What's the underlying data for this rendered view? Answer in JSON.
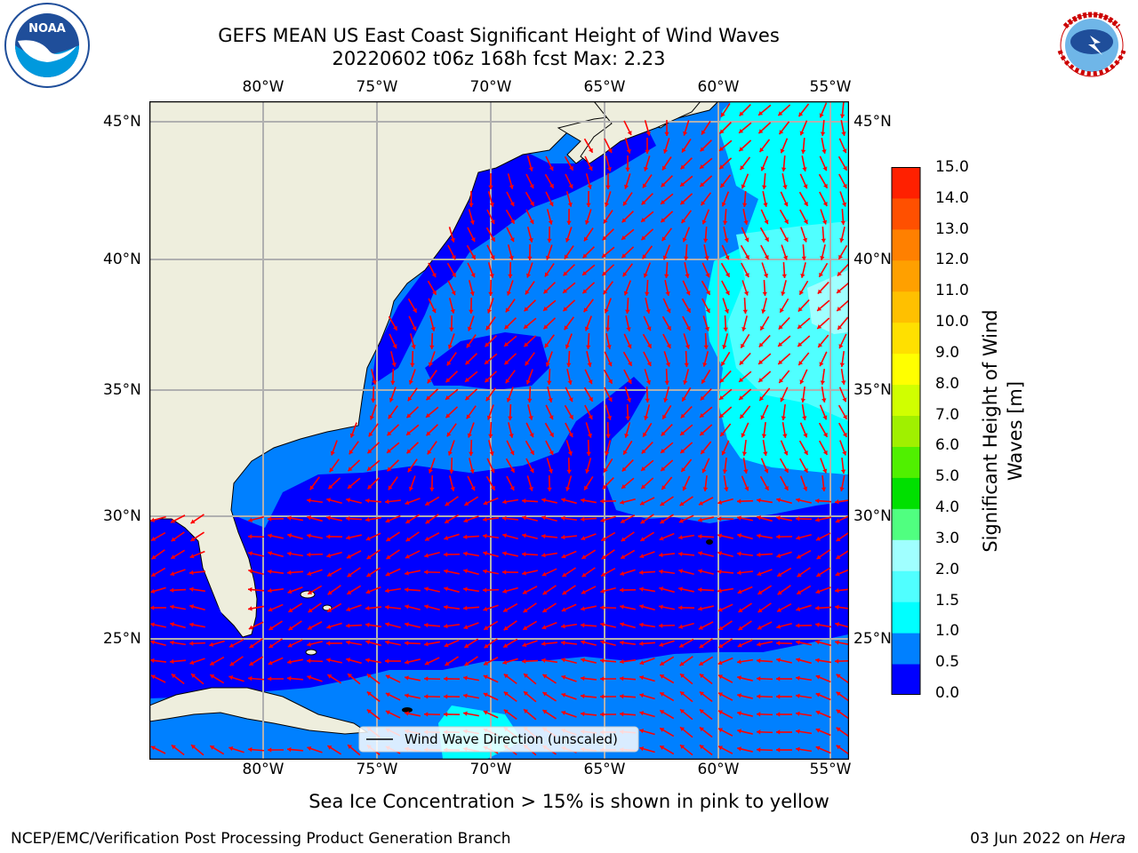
{
  "title": {
    "line1": "GEFS MEAN US East Coast Significant Height of Wind Waves",
    "line2": "20220602 t06z 168h fcst   Max: 2.23"
  },
  "logos": {
    "left_text": "NOAA",
    "right_text": "NATIONAL WEATHER SERVICE"
  },
  "map": {
    "lon_ticks": [
      "80°W",
      "75°W",
      "70°W",
      "65°W",
      "60°W",
      "55°W"
    ],
    "lat_ticks": [
      "45°N",
      "40°N",
      "35°N",
      "30°N",
      "25°N"
    ],
    "extent": {
      "lon_min": -85,
      "lon_max": -54.3,
      "lat_min": 20.5,
      "lat_max": 45.9
    },
    "gridlines": true,
    "legend_label": "Wind Wave Direction (unscaled)",
    "legend_position": "bottom-center",
    "arrow_color": "#ff0000",
    "land_color": "#eeeedd",
    "wave_bands": {
      "0.0-0.5": "#0000ff",
      "0.5-1.0": "#0080ff",
      "1.0-1.5": "#00ffff",
      "1.5-2.0": "#50ffff",
      "2.0-3.0": "#a0ffff"
    }
  },
  "colorbar": {
    "label": "Significant Height of Wind Waves [m]",
    "ticks": [
      "15.0",
      "14.0",
      "13.0",
      "12.0",
      "11.0",
      "10.0",
      "9.0",
      "8.0",
      "7.0",
      "6.0",
      "5.0",
      "4.0",
      "3.0",
      "2.0",
      "1.5",
      "1.0",
      "0.5",
      "0.0"
    ],
    "colors": [
      "#0000ff",
      "#0080ff",
      "#00ffff",
      "#50ffff",
      "#a0ffff",
      "#50ff80",
      "#00e000",
      "#50f000",
      "#a0f000",
      "#d0ff00",
      "#ffff00",
      "#ffe000",
      "#ffc000",
      "#ffa000",
      "#ff8000",
      "#ff5000",
      "#ff2000"
    ]
  },
  "note": "Sea Ice Concentration > 15% is shown in pink to yellow",
  "footer": {
    "left": "NCEP/EMC/Verification Post Processing Product Generation Branch",
    "right_date": "03 Jun 2022 on ",
    "right_machine": "Hera"
  }
}
